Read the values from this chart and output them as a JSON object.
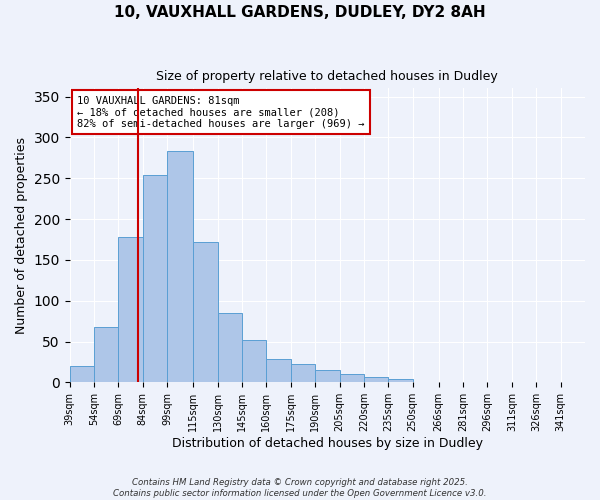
{
  "title": "10, VAUXHALL GARDENS, DUDLEY, DY2 8AH",
  "subtitle": "Size of property relative to detached houses in Dudley",
  "bar_values": [
    20,
    68,
    178,
    254,
    283,
    172,
    85,
    52,
    29,
    22,
    15,
    10,
    7,
    4,
    1,
    1,
    0,
    0,
    0,
    0
  ],
  "bar_color": "#aec6e8",
  "bar_edge_color": "#5a9fd4",
  "vline_x": 81,
  "vline_color": "#cc0000",
  "xlabel": "Distribution of detached houses by size in Dudley",
  "ylabel": "Number of detached properties",
  "ylim": [
    0,
    360
  ],
  "yticks": [
    0,
    50,
    100,
    150,
    200,
    250,
    300,
    350
  ],
  "annotation_title": "10 VAUXHALL GARDENS: 81sqm",
  "annotation_line2": "← 18% of detached houses are smaller (208)",
  "annotation_line3": "82% of semi-detached houses are larger (969) →",
  "annotation_box_color": "#ffffff",
  "annotation_box_edge": "#cc0000",
  "footer_line1": "Contains HM Land Registry data © Crown copyright and database right 2025.",
  "footer_line2": "Contains public sector information licensed under the Open Government Licence v3.0.",
  "bin_edges": [
    39,
    54,
    69,
    84,
    99,
    115,
    130,
    145,
    160,
    175,
    190,
    205,
    220,
    235,
    250,
    266,
    281,
    296,
    311,
    326,
    341
  ],
  "bin_labels": [
    "39sqm",
    "54sqm",
    "69sqm",
    "84sqm",
    "99sqm",
    "115sqm",
    "130sqm",
    "145sqm",
    "160sqm",
    "175sqm",
    "190sqm",
    "205sqm",
    "220sqm",
    "235sqm",
    "250sqm",
    "266sqm",
    "281sqm",
    "296sqm",
    "311sqm",
    "326sqm",
    "341sqm"
  ],
  "bin_width": 15
}
